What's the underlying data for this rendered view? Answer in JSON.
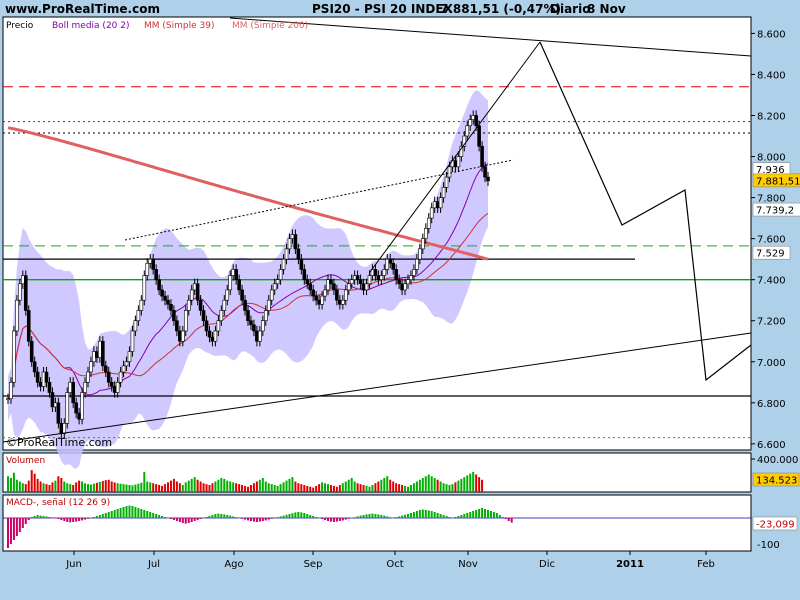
{
  "header": {
    "site": "www.ProRealTime.com",
    "title": "PSI20 - PSI 20 INDEX",
    "quote": "7.881,51 (-0,47%)",
    "period": "Diario",
    "date": "8 Nov"
  },
  "watermark": "©ProRealTime.com",
  "colors": {
    "background": "#aed0e8",
    "panel": "#ffffff",
    "price_up": "#00b000",
    "price_down": "#c00000",
    "bollinger_fill": "#c8c0ff",
    "mm39": "#cc3333",
    "mm200": "#e06060",
    "volume_up": "#00b000",
    "volume_down": "#e00000",
    "macd": "#00b000",
    "signal": "#9900cc"
  },
  "chart_data": [
    {
      "panel": "price",
      "type": "line",
      "legend": [
        "Precio",
        "Boll media (20 2)",
        "MM (Simple 39)",
        "MM (Simple 200)"
      ],
      "x_tick_labels": [
        "Jun",
        "Jul",
        "Ago",
        "Sep",
        "Oct",
        "Nov",
        "Dic",
        "2011",
        "Feb"
      ],
      "y_ticks": [
        {
          "v": 6600,
          "label": "6.600"
        },
        {
          "v": 6800,
          "label": "6.800"
        },
        {
          "v": 7000,
          "label": "7.000"
        },
        {
          "v": 7200,
          "label": "7.200"
        },
        {
          "v": 7400,
          "label": "7.400"
        },
        {
          "v": 7600,
          "label": "7.600"
        },
        {
          "v": 7800,
          "label": "7.800"
        },
        {
          "v": 8000,
          "label": "8.000"
        },
        {
          "v": 8200,
          "label": "8.200"
        },
        {
          "v": 8400,
          "label": "8.400"
        },
        {
          "v": 8600,
          "label": "8.600"
        }
      ],
      "ylim": [
        6570,
        8680
      ],
      "value_labels": [
        {
          "v": 7936,
          "label": "7.936",
          "bg": "#ffffff"
        },
        {
          "v": 7881.51,
          "label": "7.881,51",
          "bg": "#ffcc00"
        },
        {
          "v": 7739.2,
          "label": "7.739,2",
          "bg": "#ffffff"
        },
        {
          "v": 7529,
          "label": "7.529",
          "bg": "#ffffff"
        }
      ],
      "close_series": [
        6820,
        6900,
        7150,
        7300,
        7380,
        7420,
        7250,
        7100,
        7000,
        6950,
        6900,
        6880,
        6950,
        6900,
        6850,
        6780,
        6800,
        6700,
        6650,
        6700,
        6850,
        6900,
        6800,
        6750,
        6720,
        6850,
        6900,
        6950,
        7000,
        7050,
        7020,
        7100,
        6980,
        6950,
        6900,
        6880,
        6850,
        6900,
        6950,
        6980,
        7000,
        7050,
        7150,
        7200,
        7250,
        7300,
        7420,
        7480,
        7500,
        7450,
        7400,
        7350,
        7320,
        7300,
        7280,
        7250,
        7200,
        7150,
        7100,
        7150,
        7250,
        7300,
        7350,
        7380,
        7300,
        7250,
        7200,
        7150,
        7120,
        7100,
        7150,
        7200,
        7250,
        7300,
        7350,
        7420,
        7450,
        7400,
        7350,
        7300,
        7250,
        7200,
        7180,
        7150,
        7100,
        7150,
        7200,
        7250,
        7300,
        7350,
        7380,
        7400,
        7450,
        7500,
        7550,
        7600,
        7620,
        7550,
        7500,
        7450,
        7400,
        7380,
        7350,
        7320,
        7300,
        7280,
        7320,
        7350,
        7400,
        7380,
        7350,
        7300,
        7280,
        7300,
        7350,
        7380,
        7400,
        7420,
        7400,
        7380,
        7350,
        7380,
        7420,
        7450,
        7420,
        7400,
        7420,
        7450,
        7500,
        7480,
        7450,
        7400,
        7380,
        7350,
        7380,
        7400,
        7420,
        7450,
        7500,
        7550,
        7600,
        7650,
        7700,
        7750,
        7780,
        7750,
        7800,
        7850,
        7900,
        7950,
        7980,
        7950,
        8000,
        8050,
        8100,
        8150,
        8180,
        8200,
        8150,
        8050,
        7950,
        7900,
        7881.51
      ],
      "horizontal_lines": [
        {
          "v": 8340,
          "color": "#dd0000",
          "style": "dash",
          "extent": "full"
        },
        {
          "v": 8170,
          "color": "#dd0000",
          "style": "dot",
          "extent": "full"
        },
        {
          "v": 8115,
          "color": "#000000",
          "style": "dot",
          "extent": "full"
        },
        {
          "v": 7565,
          "color": "#00bb00",
          "style": "dash",
          "extent": "full"
        },
        {
          "v": 7500,
          "color": "#000000",
          "style": "solid",
          "extent": "partial"
        },
        {
          "v": 7400,
          "color": "#00aa00",
          "style": "solid",
          "extent": "full"
        },
        {
          "v": 6833,
          "color": "#000000",
          "style": "solid",
          "extent": "full"
        },
        {
          "v": 6630,
          "color": "#00bb00",
          "style": "dot",
          "extent": "full"
        }
      ]
    },
    {
      "panel": "volume",
      "type": "bar",
      "legend": [
        "Volumen"
      ],
      "y_tick_label": "400.000",
      "value_label": "134.523",
      "values": [
        180,
        160,
        220,
        140,
        120,
        100,
        90,
        130,
        250,
        210,
        150,
        120,
        100,
        90,
        80,
        110,
        130,
        180,
        160,
        120,
        100,
        90,
        80,
        110,
        130,
        120,
        100,
        90,
        85,
        95,
        105,
        115,
        125,
        135,
        140,
        120,
        110,
        100,
        95,
        90,
        85,
        80,
        75,
        85,
        95,
        105,
        230,
        120,
        110,
        100,
        90,
        80,
        70,
        90,
        110,
        130,
        150,
        120,
        100,
        80,
        110,
        130,
        150,
        170,
        140,
        120,
        100,
        90,
        80,
        100,
        120,
        140,
        160,
        150,
        130,
        120,
        110,
        100,
        90,
        80,
        70,
        60,
        80,
        100,
        120,
        140,
        160,
        120,
        100,
        90,
        80,
        70,
        90,
        110,
        130,
        150,
        170,
        120,
        100,
        90,
        80,
        70,
        60,
        50,
        70,
        90,
        110,
        100,
        90,
        80,
        70,
        60,
        80,
        100,
        120,
        140,
        160,
        120,
        100,
        90,
        80,
        70,
        60,
        80,
        100,
        120,
        140,
        160,
        180,
        140,
        120,
        100,
        90,
        80,
        70,
        60,
        80,
        100,
        120,
        140,
        160,
        180,
        200,
        180,
        160,
        140,
        120,
        100,
        90,
        80,
        90,
        110,
        130,
        150,
        170,
        190,
        210,
        230,
        200,
        170,
        140
      ]
    },
    {
      "panel": "macd",
      "type": "bar",
      "legend": [
        "MACD-, señal (12 26 9)"
      ],
      "y_tick_label": "-100",
      "value_label": "-23,099",
      "values": [
        -150,
        -130,
        -110,
        -90,
        -70,
        -50,
        -30,
        -10,
        5,
        10,
        15,
        12,
        10,
        8,
        5,
        3,
        -2,
        -5,
        -10,
        -15,
        -20,
        -22,
        -20,
        -18,
        -15,
        -12,
        -8,
        -4,
        0,
        5,
        10,
        15,
        20,
        25,
        30,
        35,
        40,
        45,
        50,
        55,
        60,
        62,
        60,
        55,
        50,
        45,
        40,
        35,
        30,
        25,
        20,
        15,
        10,
        5,
        0,
        -5,
        -10,
        -15,
        -20,
        -25,
        -28,
        -25,
        -20,
        -15,
        -10,
        -5,
        0,
        5,
        10,
        15,
        20,
        22,
        20,
        18,
        15,
        12,
        8,
        4,
        0,
        -4,
        -8,
        -12,
        -15,
        -18,
        -20,
        -18,
        -15,
        -12,
        -8,
        -4,
        0,
        4,
        8,
        12,
        16,
        20,
        24,
        28,
        30,
        28,
        25,
        20,
        15,
        10,
        5,
        0,
        -5,
        -10,
        -15,
        -18,
        -20,
        -18,
        -15,
        -12,
        -8,
        -4,
        0,
        4,
        8,
        12,
        15,
        18,
        20,
        22,
        20,
        18,
        15,
        12,
        8,
        4,
        0,
        4,
        8,
        12,
        16,
        20,
        25,
        30,
        35,
        40,
        42,
        40,
        38,
        35,
        30,
        25,
        20,
        15,
        10,
        5,
        0,
        5,
        10,
        15,
        20,
        25,
        30,
        35,
        40,
        45,
        50,
        45,
        40,
        35,
        30,
        25,
        15,
        5,
        -5,
        -15,
        -23.099
      ]
    }
  ]
}
